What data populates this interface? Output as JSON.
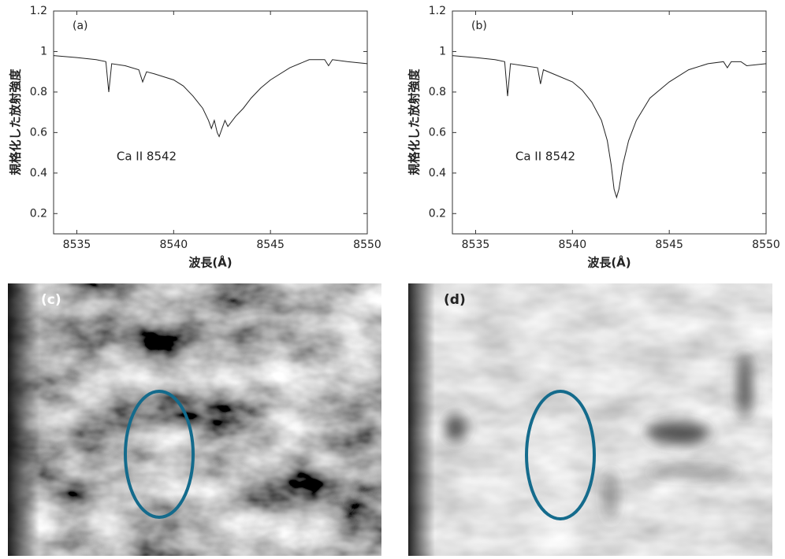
{
  "chart_data": [
    {
      "type": "line",
      "panel_label": "(a)",
      "annotation": "Ca II 8542",
      "xlabel": "波長(Å)",
      "ylabel": "規格化した放射強度",
      "xlim": [
        8533.8,
        8550
      ],
      "ylim": [
        0.1,
        1.2
      ],
      "xticks": [
        8535,
        8540,
        8545,
        8550
      ],
      "yticks": [
        0.2,
        0.4,
        0.6,
        0.8,
        1,
        1.2
      ],
      "color": "#222222",
      "x": [
        8533.8,
        8535,
        8536,
        8536.5,
        8536.65,
        8536.8,
        8537.5,
        8538.2,
        8538.4,
        8538.6,
        8539,
        8540,
        8540.5,
        8541,
        8541.5,
        8541.8,
        8541.95,
        8542.1,
        8542.25,
        8542.35,
        8542.5,
        8542.65,
        8542.8,
        8543.2,
        8543.6,
        8544,
        8544.5,
        8545,
        8546,
        8547,
        8547.8,
        8548,
        8548.2,
        8549,
        8550
      ],
      "values": [
        0.98,
        0.97,
        0.96,
        0.95,
        0.8,
        0.94,
        0.93,
        0.91,
        0.85,
        0.9,
        0.89,
        0.86,
        0.83,
        0.78,
        0.72,
        0.66,
        0.62,
        0.66,
        0.6,
        0.58,
        0.62,
        0.66,
        0.63,
        0.68,
        0.72,
        0.77,
        0.82,
        0.86,
        0.92,
        0.96,
        0.96,
        0.93,
        0.96,
        0.95,
        0.94
      ]
    },
    {
      "type": "line",
      "panel_label": "(b)",
      "annotation": "Ca II 8542",
      "xlabel": "波長(Å)",
      "ylabel": "規格化した放射強度",
      "xlim": [
        8533.8,
        8550
      ],
      "ylim": [
        0.1,
        1.2
      ],
      "xticks": [
        8535,
        8540,
        8545,
        8550
      ],
      "yticks": [
        0.2,
        0.4,
        0.6,
        0.8,
        1,
        1.2
      ],
      "color": "#222222",
      "x": [
        8533.8,
        8535,
        8536,
        8536.5,
        8536.65,
        8536.8,
        8537.5,
        8538.2,
        8538.35,
        8538.5,
        8539,
        8540,
        8540.5,
        8541,
        8541.5,
        8541.8,
        8542,
        8542.15,
        8542.28,
        8542.4,
        8542.6,
        8542.9,
        8543.3,
        8544,
        8545,
        8546,
        8547,
        8547.8,
        8548,
        8548.2,
        8548.7,
        8549,
        8550
      ],
      "values": [
        0.98,
        0.97,
        0.96,
        0.95,
        0.78,
        0.94,
        0.93,
        0.92,
        0.84,
        0.91,
        0.89,
        0.85,
        0.81,
        0.75,
        0.66,
        0.56,
        0.44,
        0.32,
        0.28,
        0.32,
        0.44,
        0.56,
        0.66,
        0.77,
        0.85,
        0.91,
        0.94,
        0.95,
        0.92,
        0.95,
        0.95,
        0.93,
        0.94
      ]
    }
  ],
  "images": [
    {
      "label": "(c)"
    },
    {
      "label": "(d)"
    }
  ]
}
